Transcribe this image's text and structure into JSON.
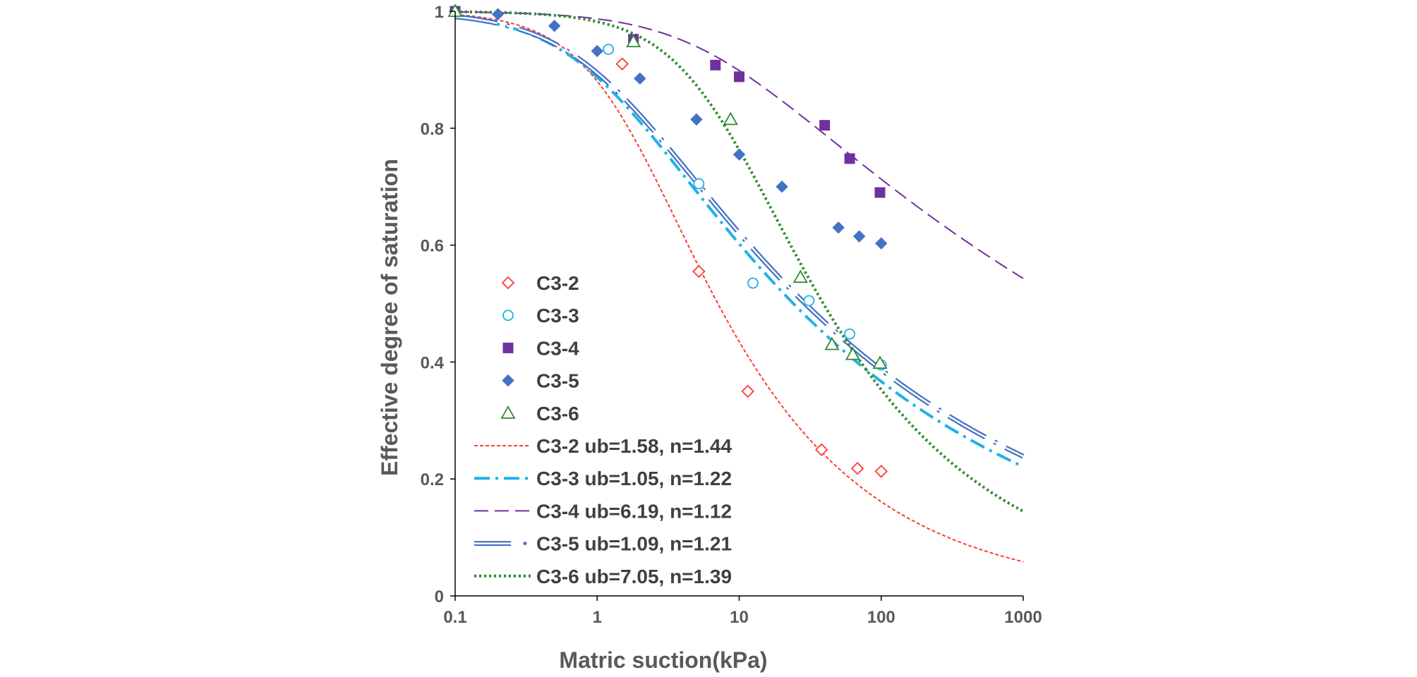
{
  "chart_data": {
    "type": "scatter",
    "title": "",
    "xlabel": "Matric suction(kPa)",
    "ylabel": "Effective degree of saturation",
    "x_scale": "log",
    "xlim": [
      0.1,
      1000
    ],
    "ylim": [
      0,
      1
    ],
    "x_ticks": [
      "0.1",
      "1",
      "10",
      "100",
      "1000"
    ],
    "y_ticks": [
      "0",
      "0.2",
      "0.4",
      "0.6",
      "0.8",
      "1"
    ],
    "grid": false,
    "legend_position": "left",
    "colors": {
      "c32": "#ff3b30",
      "c33": "#1fb2e8",
      "c34": "#7030a0",
      "c35": "#4472c4",
      "c36": "#2e8b2e",
      "axis": "#000000",
      "text": "#595959"
    },
    "series": [
      {
        "name": "C3-2",
        "marker": "diamond-open",
        "color": "#ff3b30",
        "points": [
          [
            0.1,
            1.0
          ],
          [
            1.5,
            0.91
          ],
          [
            5.2,
            0.555
          ],
          [
            11.5,
            0.35
          ],
          [
            38,
            0.25
          ],
          [
            68,
            0.218
          ],
          [
            100,
            0.213
          ]
        ]
      },
      {
        "name": "C3-3",
        "marker": "circle-open",
        "color": "#1fb2e8",
        "points": [
          [
            0.1,
            1.0
          ],
          [
            1.2,
            0.935
          ],
          [
            5.2,
            0.705
          ],
          [
            12.5,
            0.535
          ],
          [
            31,
            0.505
          ],
          [
            60,
            0.448
          ],
          [
            100,
            0.395
          ]
        ]
      },
      {
        "name": "C3-4",
        "marker": "square",
        "color": "#7030a0",
        "points": [
          [
            0.1,
            1.0
          ],
          [
            1.8,
            0.952
          ],
          [
            6.8,
            0.908
          ],
          [
            10,
            0.888
          ],
          [
            40,
            0.805
          ],
          [
            60,
            0.748
          ],
          [
            98,
            0.69
          ]
        ]
      },
      {
        "name": "C3-5",
        "marker": "diamond",
        "color": "#4472c4",
        "points": [
          [
            0.1,
            1.0
          ],
          [
            0.2,
            0.995
          ],
          [
            0.5,
            0.975
          ],
          [
            1,
            0.932
          ],
          [
            2,
            0.885
          ],
          [
            5,
            0.815
          ],
          [
            10,
            0.755
          ],
          [
            20,
            0.7
          ],
          [
            50,
            0.63
          ],
          [
            70,
            0.615
          ],
          [
            100,
            0.603
          ]
        ]
      },
      {
        "name": "C3-6",
        "marker": "triangle-open",
        "color": "#2e8b2e",
        "points": [
          [
            0.1,
            1.0
          ],
          [
            1.8,
            0.948
          ],
          [
            8.7,
            0.815
          ],
          [
            27,
            0.545
          ],
          [
            45,
            0.43
          ],
          [
            63,
            0.413
          ],
          [
            98,
            0.398
          ]
        ]
      }
    ],
    "fits": [
      {
        "name": "C3-2 ub=1.58, n=1.44",
        "ub": 1.58,
        "n": 1.44,
        "style": "short-dash",
        "color": "#ff3b30"
      },
      {
        "name": "C3-3 ub=1.05, n=1.22",
        "ub": 1.05,
        "n": 1.22,
        "style": "dash-dot",
        "color": "#1fb2e8"
      },
      {
        "name": "C3-4 ub=6.19, n=1.12",
        "ub": 6.19,
        "n": 1.12,
        "style": "long-dash",
        "color": "#7030a0"
      },
      {
        "name": "C3-5 ub=1.09, n=1.21",
        "ub": 1.09,
        "n": 1.21,
        "style": "double-dash-dot",
        "color": "#4472c4"
      },
      {
        "name": "C3-6 ub=7.05, n=1.39",
        "ub": 7.05,
        "n": 1.39,
        "style": "dotted",
        "color": "#2e8b2e"
      }
    ]
  }
}
